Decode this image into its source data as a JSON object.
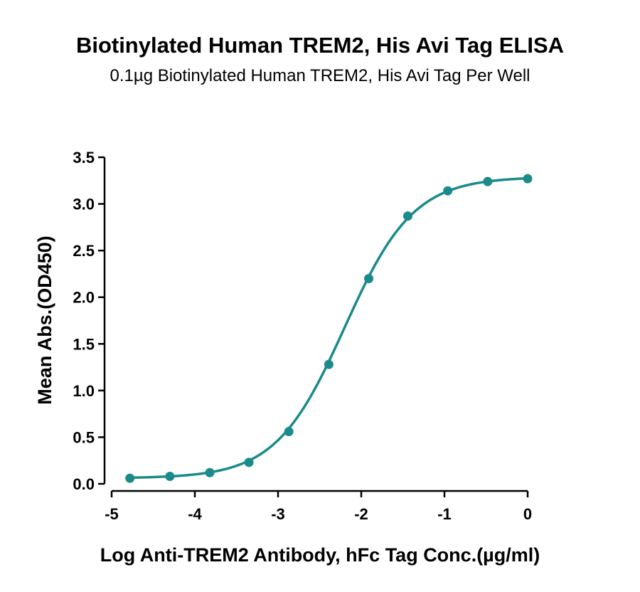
{
  "chart_data": {
    "type": "scatter",
    "title": "Biotinylated Human TREM2, His Avi Tag ELISA",
    "subtitle": "0.1µg Biotinylated Human TREM2, His Avi Tag Per Well",
    "xlabel": "Log Anti-TREM2 Antibody, hFc Tag Conc.(µg/ml)",
    "ylabel": "Mean Abs.(OD450)",
    "xlim": [
      -5,
      0
    ],
    "ylim": [
      0,
      3.5
    ],
    "x_ticks": [
      "-5",
      "-4",
      "-3",
      "-2",
      "-1",
      "0"
    ],
    "y_ticks": [
      "0.0",
      "0.5",
      "1.0",
      "1.5",
      "2.0",
      "2.5",
      "3.0",
      "3.5"
    ],
    "grid": false,
    "fit": "4PL sigmoidal curve",
    "series": [
      {
        "color": "#1a8a8a",
        "points": [
          {
            "x": -4.78,
            "y": 0.06
          },
          {
            "x": -4.3,
            "y": 0.08
          },
          {
            "x": -3.82,
            "y": 0.12
          },
          {
            "x": -3.35,
            "y": 0.23
          },
          {
            "x": -2.87,
            "y": 0.56
          },
          {
            "x": -2.39,
            "y": 1.28
          },
          {
            "x": -1.91,
            "y": 2.2
          },
          {
            "x": -1.44,
            "y": 2.87
          },
          {
            "x": -0.96,
            "y": 3.14
          },
          {
            "x": -0.48,
            "y": 3.24
          },
          {
            "x": 0.0,
            "y": 3.27
          }
        ]
      }
    ]
  }
}
